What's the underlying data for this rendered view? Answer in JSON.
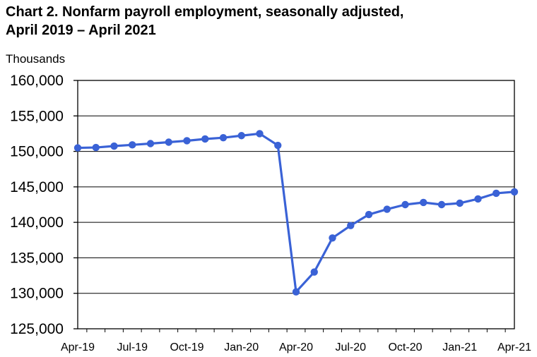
{
  "chart_data": {
    "type": "line",
    "title_line1": "Chart 2. Nonfarm payroll employment, seasonally adjusted,",
    "title_line2": "April 2019 – April 2021",
    "ylabel": "Thousands",
    "xlabel": "",
    "ylim": [
      125000,
      160000
    ],
    "yticks": [
      160000,
      155000,
      150000,
      145000,
      140000,
      135000,
      130000,
      125000
    ],
    "ytick_labels": [
      "160,000",
      "155,000",
      "150,000",
      "145,000",
      "140,000",
      "135,000",
      "130,000",
      "125,000"
    ],
    "x": [
      "Apr-19",
      "May-19",
      "Jun-19",
      "Jul-19",
      "Aug-19",
      "Sep-19",
      "Oct-19",
      "Nov-19",
      "Dec-19",
      "Jan-20",
      "Feb-20",
      "Mar-20",
      "Apr-20",
      "May-20",
      "Jun-20",
      "Jul-20",
      "Aug-20",
      "Sep-20",
      "Oct-20",
      "Nov-20",
      "Dec-20",
      "Jan-21",
      "Feb-21",
      "Mar-21",
      "Apr-21"
    ],
    "xtick_labels": [
      "Apr-19",
      "Jul-19",
      "Oct-19",
      "Jan-20",
      "Apr-20",
      "Jul-20",
      "Oct-20",
      "Jan-21",
      "Apr-21"
    ],
    "values": [
      150500,
      150550,
      150750,
      150920,
      151100,
      151300,
      151500,
      151750,
      151930,
      152220,
      152500,
      150850,
      130200,
      133000,
      137800,
      139550,
      141100,
      141850,
      142500,
      142800,
      142500,
      142700,
      143300,
      144100,
      144300
    ],
    "grid": true,
    "line_color": "#3a62d6"
  }
}
